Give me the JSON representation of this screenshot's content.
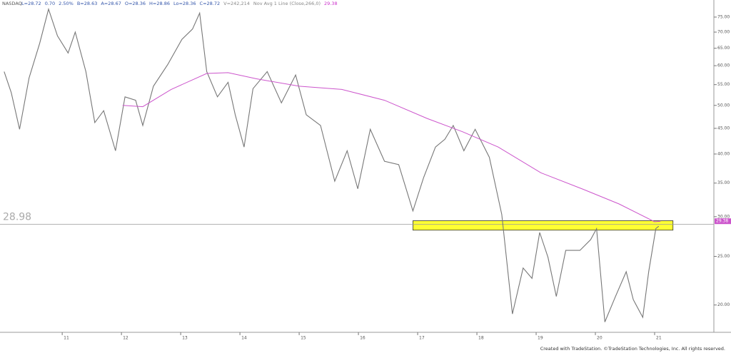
{
  "chart_data": {
    "type": "line",
    "symbol": "NASDAQ",
    "header": [
      "L=28.72",
      "0.70",
      "2.50%",
      "B=28.63",
      "A=28.67",
      "O=28.36",
      "H=28.86",
      "Lo=28.36",
      "C=28.72",
      "V=242,214",
      "Nov Avg 1 Line (Close,266,0)",
      "29.38"
    ],
    "footer": "Created with TradeStation. ©TradeStation Technologies, Inc. All rights reserved.",
    "log_scale": true,
    "xlim": [
      9.95,
      22.0
    ],
    "ylim": [
      17.7,
      79.8
    ],
    "xticks": [
      11,
      12,
      13,
      14,
      15,
      16,
      17,
      18,
      19,
      20,
      21
    ],
    "yticks": [
      {
        "value": 20,
        "label": "20.00"
      },
      {
        "value": 25,
        "label": "25.00"
      },
      {
        "value": 30,
        "label": "30.00"
      },
      {
        "value": 35,
        "label": "35.00"
      },
      {
        "value": 40,
        "label": "40.00"
      },
      {
        "value": 45,
        "label": "45.00"
      },
      {
        "value": 50,
        "label": "50.00"
      },
      {
        "value": 55,
        "label": "55.00"
      },
      {
        "value": 60,
        "label": "60.00"
      },
      {
        "value": 65,
        "label": "65.00"
      },
      {
        "value": 70,
        "label": "70.00"
      },
      {
        "value": 75,
        "label": "75.00"
      }
    ],
    "series": [
      {
        "name": "NASDAQ",
        "color": "#777777",
        "x": [
          10.02,
          10.14,
          10.28,
          10.44,
          10.62,
          10.77,
          10.92,
          11.1,
          11.22,
          11.4,
          11.55,
          11.7,
          11.9,
          12.06,
          12.24,
          12.36,
          12.54,
          12.78,
          13.02,
          13.2,
          13.32,
          13.44,
          13.62,
          13.8,
          13.92,
          14.07,
          14.22,
          14.46,
          14.7,
          14.94,
          15.12,
          15.36,
          15.6,
          15.81,
          15.99,
          16.2,
          16.44,
          16.68,
          16.92,
          17.1,
          17.3,
          17.46,
          17.6,
          17.78,
          17.97,
          18.21,
          18.42,
          18.6,
          18.78,
          18.93,
          19.06,
          19.2,
          19.34,
          19.5,
          19.74,
          19.92,
          20.02,
          20.16,
          20.34,
          20.52,
          20.64,
          20.8,
          20.9,
          21.02,
          21.07
        ],
        "values": [
          58.4,
          53.0,
          44.8,
          56.7,
          66.5,
          77.8,
          68.8,
          63.6,
          70.0,
          58.4,
          46.2,
          48.8,
          40.6,
          52.0,
          51.2,
          45.6,
          54.6,
          60.3,
          67.7,
          71.0,
          76.4,
          58.4,
          52.0,
          55.6,
          47.9,
          41.3,
          54.0,
          58.4,
          50.6,
          57.5,
          47.9,
          45.6,
          35.3,
          40.6,
          34.1,
          44.8,
          38.7,
          38.1,
          30.8,
          35.9,
          41.3,
          42.8,
          45.6,
          40.6,
          44.8,
          39.4,
          30.3,
          19.2,
          23.7,
          22.6,
          27.9,
          24.9,
          20.8,
          25.7,
          25.7,
          27.0,
          28.4,
          18.5,
          20.8,
          23.3,
          20.5,
          18.9,
          23.3,
          28.4,
          28.72
        ]
      },
      {
        "name": "Avg 1 Line",
        "color": "#cc55cc",
        "x": [
          12.02,
          12.36,
          12.84,
          13.44,
          13.8,
          14.28,
          15.0,
          15.72,
          16.44,
          17.16,
          17.76,
          18.36,
          19.08,
          19.8,
          20.4,
          21.0,
          21.1
        ],
        "values": [
          50.0,
          49.7,
          53.8,
          57.9,
          58.1,
          56.5,
          54.6,
          53.8,
          51.2,
          47.1,
          44.3,
          41.3,
          36.7,
          34.0,
          31.8,
          29.3,
          29.38
        ]
      }
    ],
    "hline": 28.98,
    "zone": {
      "color": "#ffff33",
      "x": [
        16.92,
        21.31
      ],
      "y": [
        28.2,
        29.45
      ]
    }
  }
}
